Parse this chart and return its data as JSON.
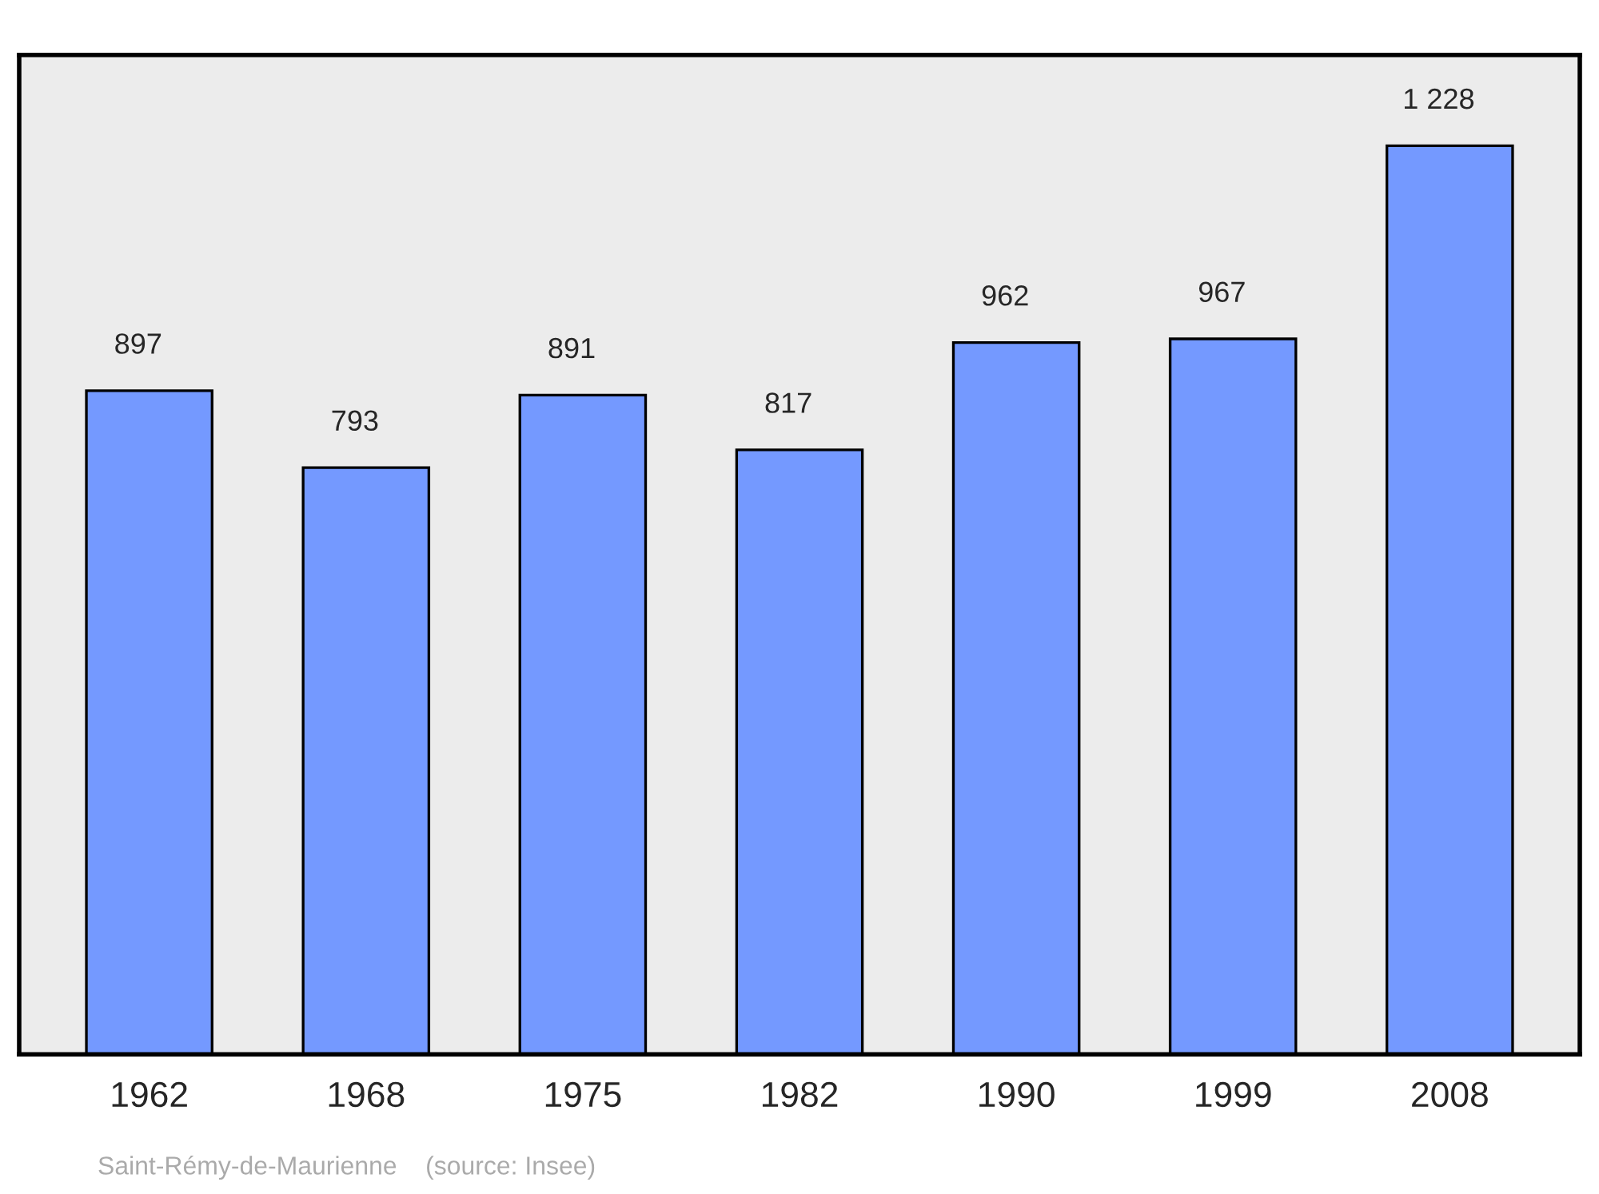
{
  "chart_data": {
    "type": "bar",
    "categories": [
      "1962",
      "1968",
      "1975",
      "1982",
      "1990",
      "1999",
      "2008"
    ],
    "values": [
      897,
      793,
      891,
      817,
      962,
      967,
      1228
    ],
    "value_labels": [
      "897",
      "793",
      "891",
      "817",
      "962",
      "967",
      "1 228"
    ],
    "color": "#7499ff",
    "annotations": [
      "Saint-Rémy-de-Maurienne    (source: Insee)"
    ],
    "grid": false
  }
}
